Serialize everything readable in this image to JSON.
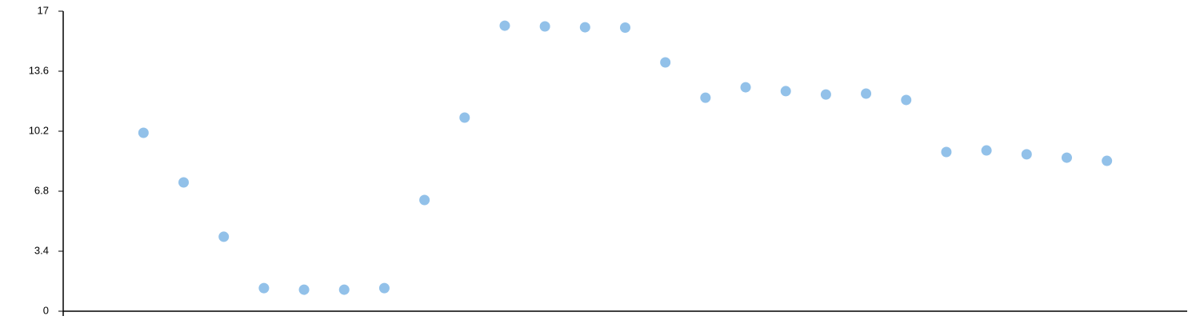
{
  "chart_data": {
    "type": "scatter",
    "x": [
      1,
      2,
      3,
      4,
      5,
      6,
      7,
      8,
      9,
      10,
      11,
      12,
      13,
      14,
      15,
      16,
      17,
      18,
      19,
      20,
      21,
      22,
      23,
      24,
      25
    ],
    "series": [
      {
        "color": "#92c1e9",
        "values": [
          10.11,
          7.3,
          4.22,
          1.31,
          1.22,
          1.22,
          1.31,
          6.3,
          10.97,
          16.18,
          16.14,
          16.09,
          16.07,
          14.1,
          12.1,
          12.69,
          12.47,
          12.28,
          12.33,
          11.97,
          9.02,
          9.11,
          8.89,
          8.7,
          8.52
        ]
      }
    ],
    "xlim": [
      -1,
      27
    ],
    "ylim": [
      0,
      17
    ],
    "yticks": [
      0,
      3.4,
      6.8,
      10.2,
      13.6,
      17
    ]
  }
}
